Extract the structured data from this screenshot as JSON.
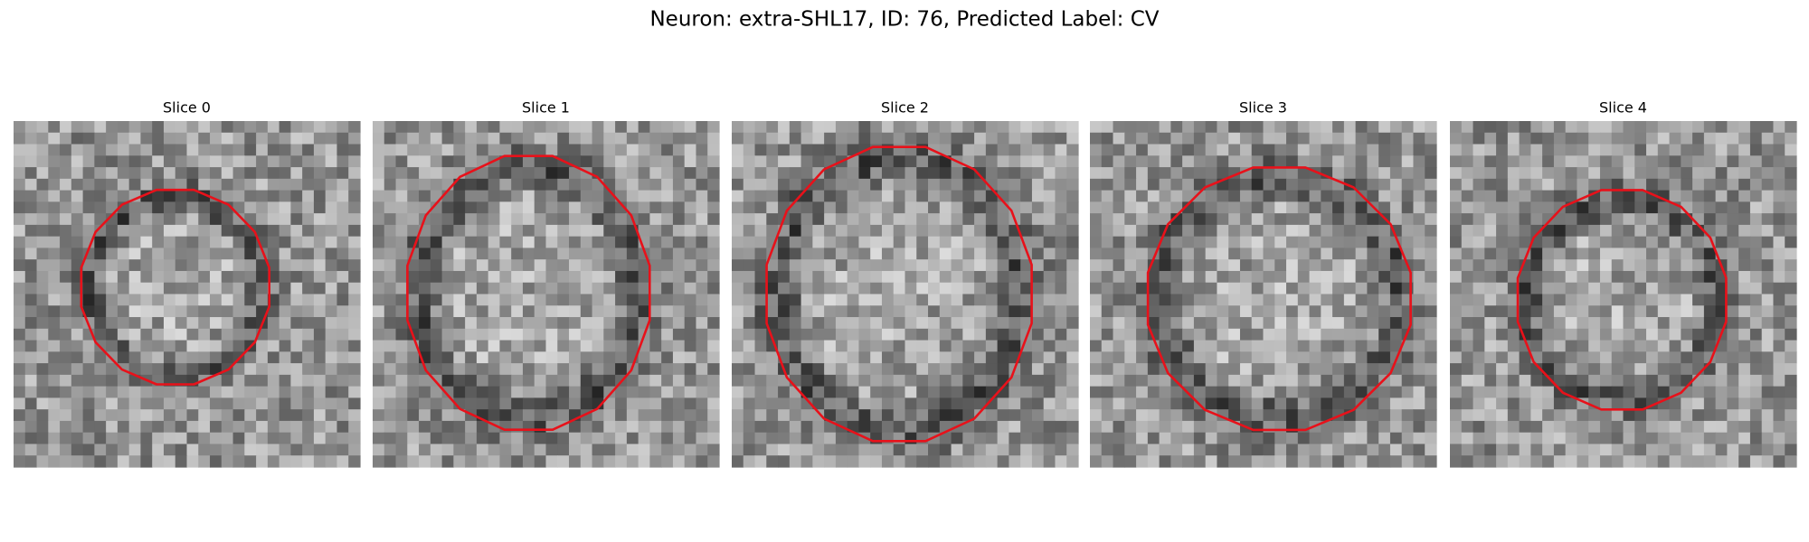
{
  "title": "Neuron: extra-SHL17, ID: 76, Predicted Label: CV",
  "panels": [
    {
      "title": "Slice 0"
    },
    {
      "title": "Slice 1"
    },
    {
      "title": "Slice 2"
    },
    {
      "title": "Slice 3"
    },
    {
      "title": "Slice 4"
    }
  ]
}
